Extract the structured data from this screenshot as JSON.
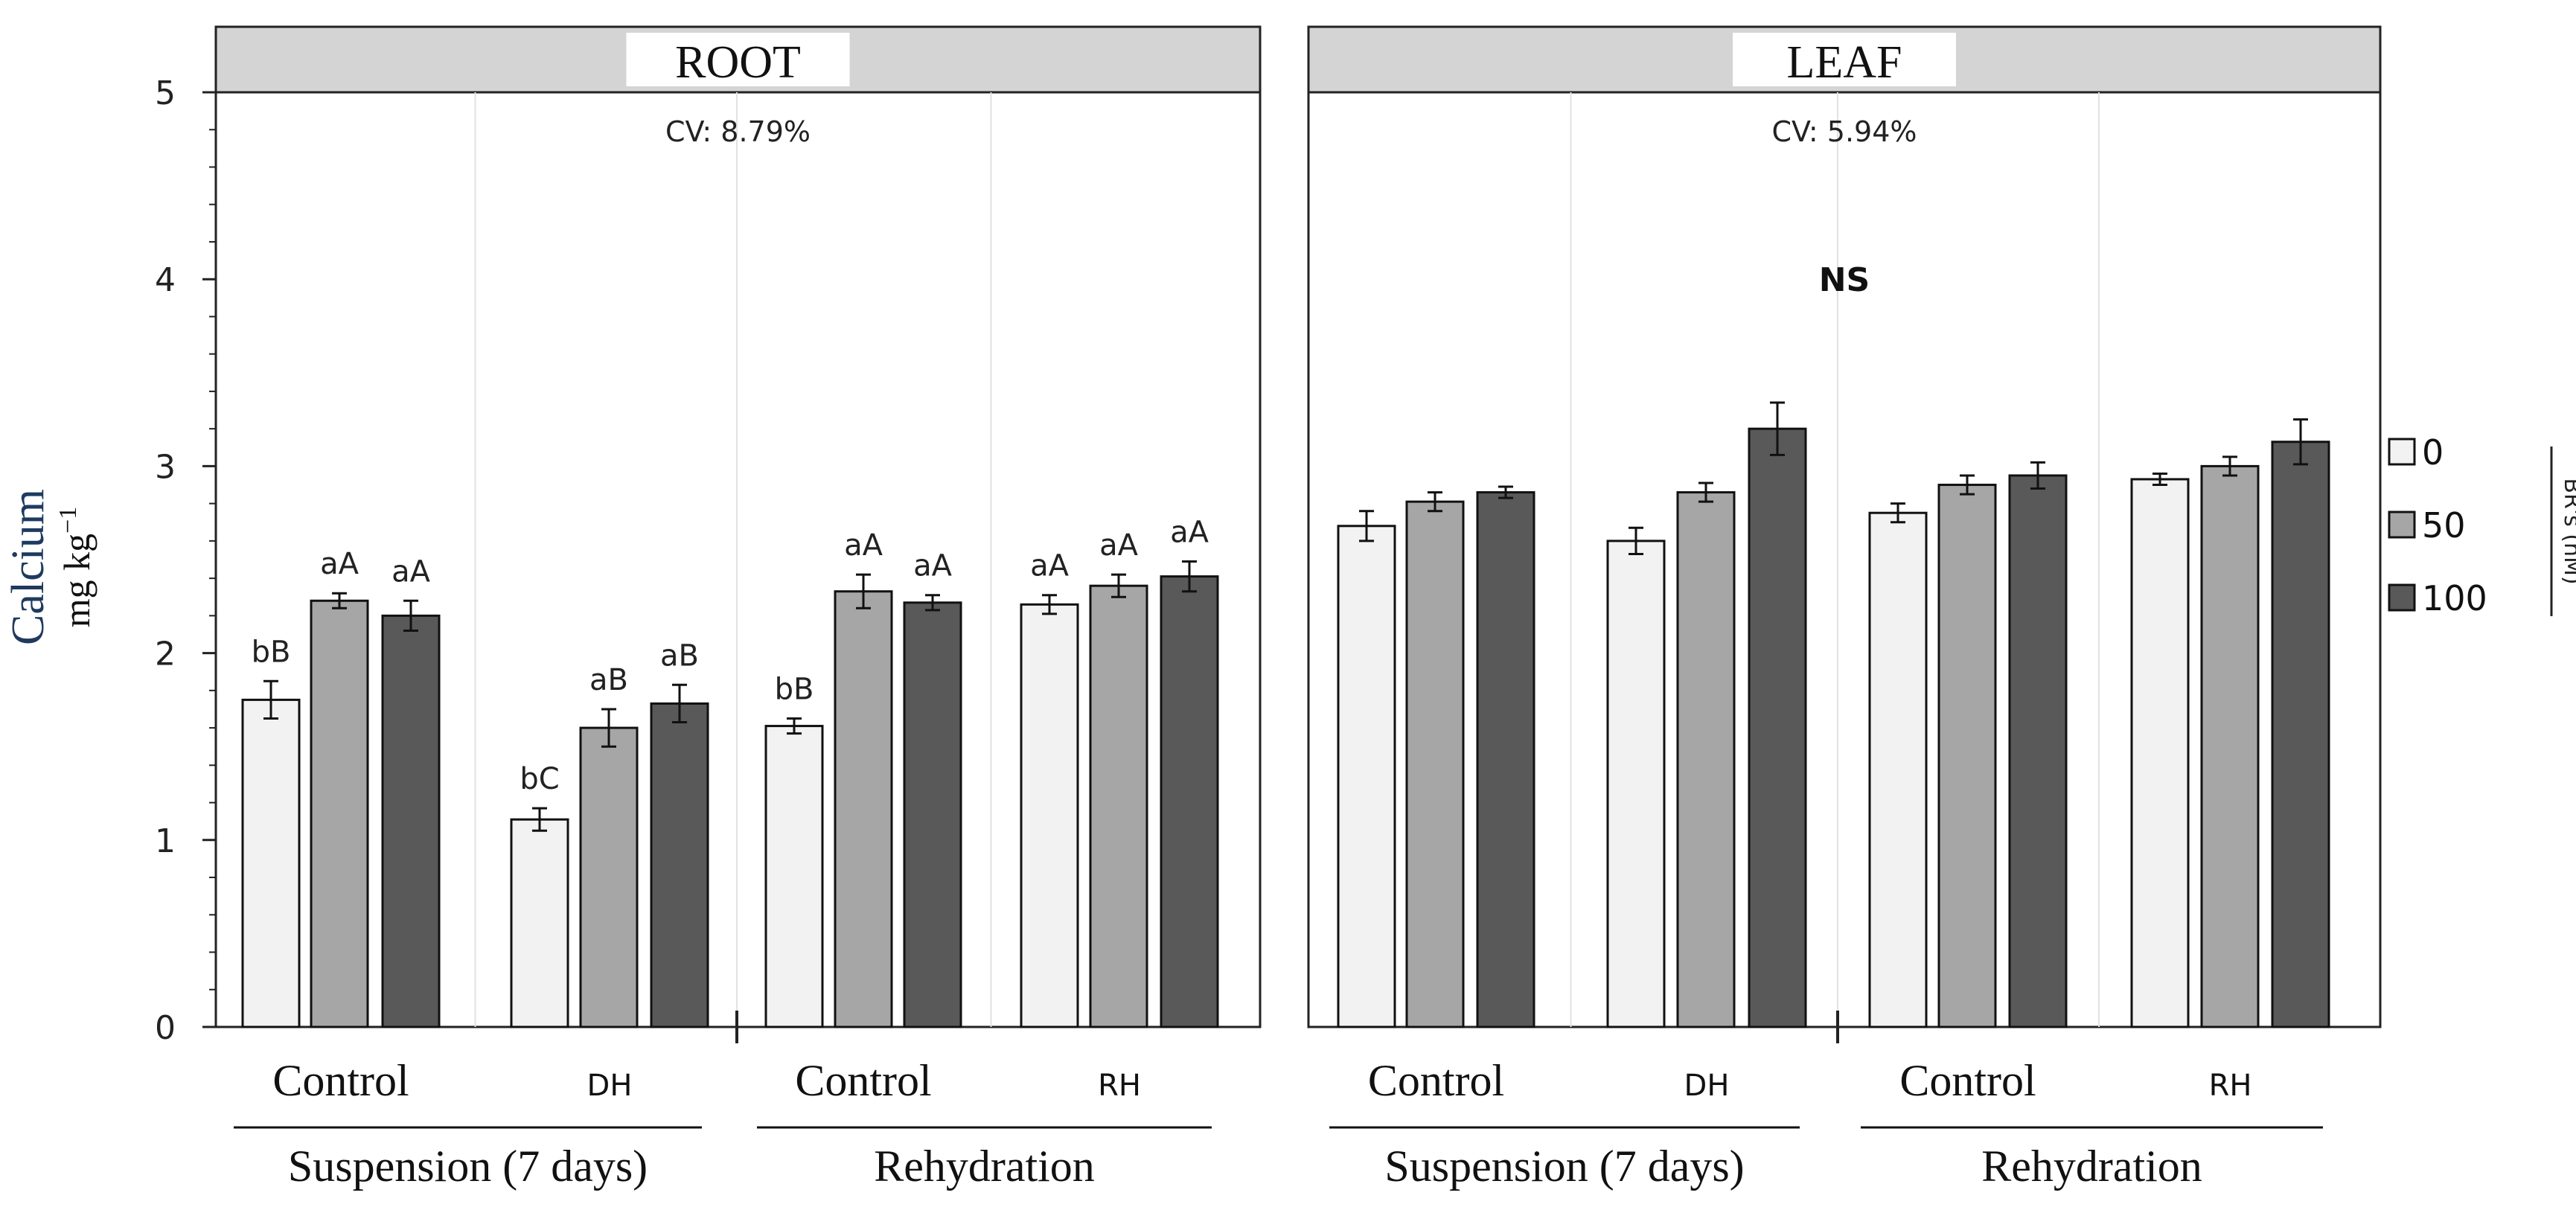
{
  "colors": {
    "bar_0": "#f2f2f2",
    "bar_50": "#a6a6a6",
    "bar_100": "#595959",
    "header_bg": "#d4d4d4",
    "axis_title": "#1f3a5f"
  },
  "axis": {
    "ylabel": "Calcium",
    "yunit_base": "mg kg",
    "yunit_exp": "−1",
    "ylim": [
      0,
      5
    ],
    "ticks": [
      "0",
      "1",
      "2",
      "3",
      "4",
      "5"
    ]
  },
  "legend": {
    "title": "BR's (nM)",
    "items": [
      "0",
      "50",
      "100"
    ]
  },
  "chart_data": [
    {
      "type": "bar",
      "title": "ROOT",
      "cv": "CV: 8.79%",
      "ns": "",
      "groups": [
        "Control",
        "DH",
        "Control",
        "RH"
      ],
      "supergroups": [
        "Suspension (7 days)",
        "Rehydration"
      ],
      "series": [
        {
          "name": "0",
          "values": [
            1.75,
            1.11,
            1.61,
            2.26
          ],
          "errors": [
            0.1,
            0.06,
            0.04,
            0.05
          ],
          "labels": [
            "bB",
            "bC",
            "bB",
            "aA"
          ]
        },
        {
          "name": "50",
          "values": [
            2.28,
            1.6,
            2.33,
            2.36
          ],
          "errors": [
            0.04,
            0.1,
            0.09,
            0.06
          ],
          "labels": [
            "aA",
            "aB",
            "aA",
            "aA"
          ]
        },
        {
          "name": "100",
          "values": [
            2.2,
            1.73,
            2.27,
            2.41
          ],
          "errors": [
            0.08,
            0.1,
            0.04,
            0.08
          ],
          "labels": [
            "aA",
            "aB",
            "aA",
            "aA"
          ]
        }
      ],
      "ylim": [
        0,
        5
      ]
    },
    {
      "type": "bar",
      "title": "LEAF",
      "cv": "CV: 5.94%",
      "ns": "NS",
      "groups": [
        "Control",
        "DH",
        "Control",
        "RH"
      ],
      "supergroups": [
        "Suspension (7 days)",
        "Rehydration"
      ],
      "series": [
        {
          "name": "0",
          "values": [
            2.68,
            2.6,
            2.75,
            2.93
          ],
          "errors": [
            0.08,
            0.07,
            0.05,
            0.03
          ],
          "labels": [
            "",
            "",
            "",
            ""
          ]
        },
        {
          "name": "50",
          "values": [
            2.81,
            2.86,
            2.9,
            3.0
          ],
          "errors": [
            0.05,
            0.05,
            0.05,
            0.05
          ],
          "labels": [
            "",
            "",
            "",
            ""
          ]
        },
        {
          "name": "100",
          "values": [
            2.86,
            3.2,
            2.95,
            3.13
          ],
          "errors": [
            0.03,
            0.14,
            0.07,
            0.12
          ],
          "labels": [
            "",
            "",
            "",
            ""
          ]
        }
      ],
      "ylim": [
        0,
        5
      ]
    }
  ]
}
